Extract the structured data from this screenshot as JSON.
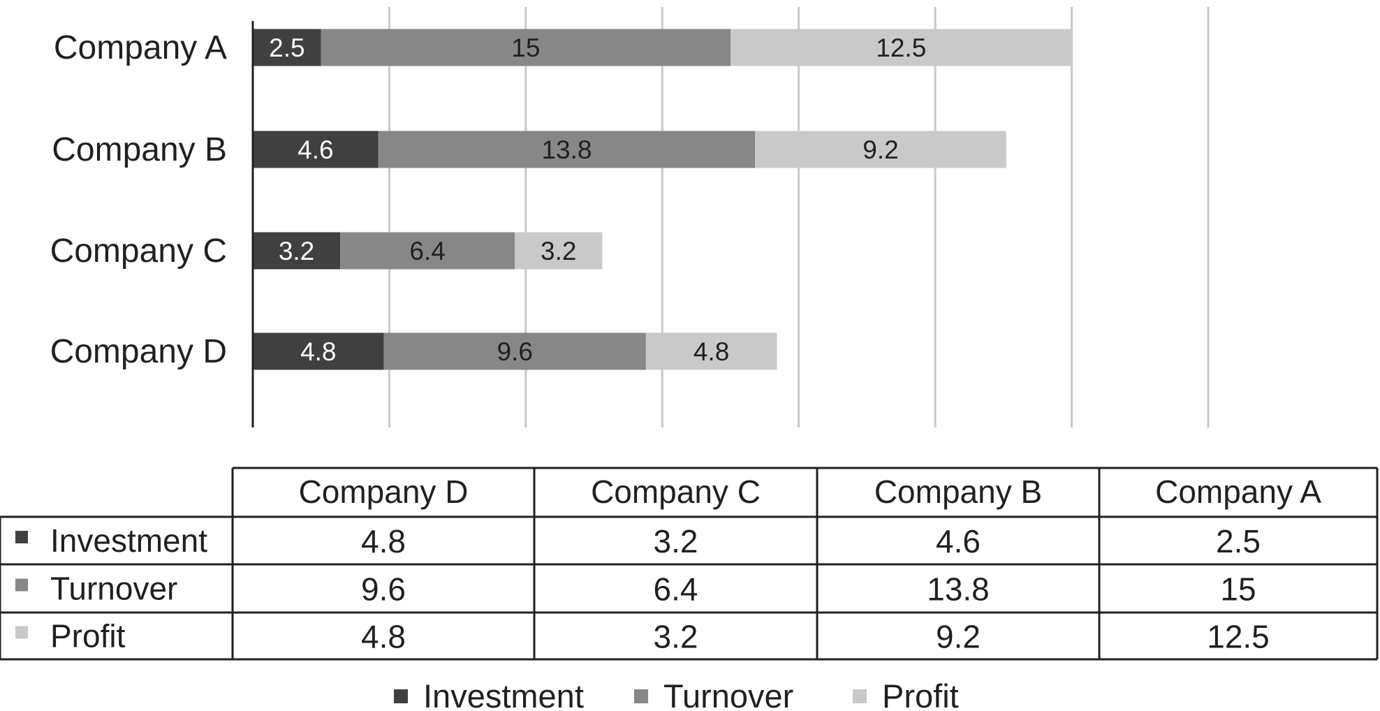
{
  "colors": {
    "Investment": "#404040",
    "Turnover": "#878787",
    "Profit": "#c8c9c8",
    "gridline": "#c8c8c8",
    "axis": "#231f20",
    "label_on_dark": "#ffffff",
    "label_on_light": "#231f20"
  },
  "chart_data": {
    "type": "bar",
    "orientation": "horizontal",
    "stacked": true,
    "categories": [
      "Company A",
      "Company B",
      "Company C",
      "Company D"
    ],
    "series": [
      {
        "name": "Investment",
        "values": [
          2.5,
          4.6,
          3.2,
          4.8
        ]
      },
      {
        "name": "Turnover",
        "values": [
          15,
          13.8,
          6.4,
          9.6
        ]
      },
      {
        "name": "Profit",
        "values": [
          12.5,
          9.2,
          3.2,
          4.8
        ]
      }
    ],
    "title": "",
    "xlabel": "",
    "ylabel": "",
    "xlim": [
      0,
      35
    ],
    "grid": "vertical gridlines every 5 units, no tick labels",
    "legend": "bottom",
    "data_table": {
      "columns": [
        "Company D",
        "Company C",
        "Company B",
        "Company A"
      ],
      "rows": [
        {
          "name": "Investment",
          "values": [
            "4.8",
            "3.2",
            "4.6",
            "2.5"
          ]
        },
        {
          "name": "Turnover",
          "values": [
            "9.6",
            "6.4",
            "13.8",
            "15"
          ]
        },
        {
          "name": "Profit",
          "values": [
            "4.8",
            "3.2",
            "9.2",
            "12.5"
          ]
        }
      ]
    }
  }
}
